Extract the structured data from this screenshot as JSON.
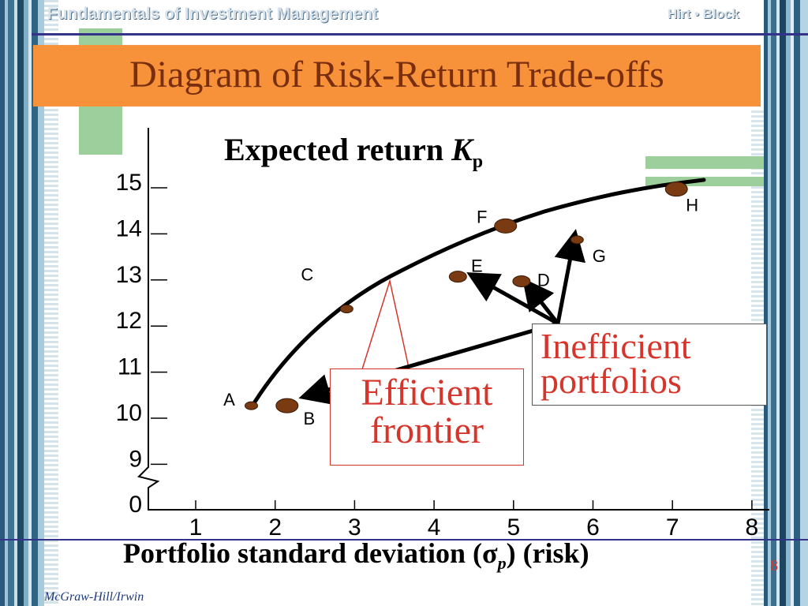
{
  "header": {
    "book_title": "Fundamentals of Investment Management",
    "authors": "Hirt • Block"
  },
  "slide": {
    "title": "Diagram of Risk-Return Trade-offs",
    "publisher": "McGraw-Hill/Irwin",
    "page_number": "8"
  },
  "axes": {
    "y_label_text": "Expected return ",
    "y_label_symbol": "K",
    "y_label_sub": "p",
    "x_label_text": "Portfolio standard deviation (",
    "x_label_symbol": "σ",
    "x_label_sub": "p",
    "x_label_tail": ")  (risk)",
    "y_ticks": [
      "15",
      "14",
      "13",
      "12",
      "11",
      "10",
      "9",
      "0"
    ],
    "x_ticks": [
      "1",
      "2",
      "3",
      "4",
      "5",
      "6",
      "7",
      "8"
    ]
  },
  "callouts": {
    "efficient_frontier": [
      "Efficient",
      "frontier"
    ],
    "inefficient_portfolios": [
      "Inefficient",
      "portfolios"
    ]
  },
  "colors": {
    "title_bar": "#f7923a",
    "title_text": "#7a2e10",
    "callout_text": "#d6352b",
    "point_fill": "#7a3a12",
    "frontier": "#000000"
  },
  "chart_data": {
    "type": "scatter",
    "y_axis_break": "0",
    "ylim": [
      9,
      15
    ],
    "xlim": [
      1,
      8
    ],
    "frontier_curve": [
      {
        "x": 1.7,
        "y": 10.1
      },
      {
        "x": 2.9,
        "y": 12.2
      },
      {
        "x": 4.9,
        "y": 14.0
      },
      {
        "x": 6.4,
        "y": 14.7
      },
      {
        "x": 7.4,
        "y": 14.8
      }
    ],
    "points": [
      {
        "label": "A",
        "x": 1.7,
        "y": 10.1,
        "size": "small"
      },
      {
        "label": "B",
        "x": 2.15,
        "y": 10.1,
        "size": "large"
      },
      {
        "label": "C",
        "x": 2.9,
        "y": 12.2,
        "size": "small"
      },
      {
        "label": "E",
        "x": 4.3,
        "y": 12.9,
        "size": "medium"
      },
      {
        "label": "D",
        "x": 5.1,
        "y": 12.8,
        "size": "medium"
      },
      {
        "label": "F",
        "x": 4.9,
        "y": 14.0,
        "size": "large"
      },
      {
        "label": "G",
        "x": 5.8,
        "y": 13.7,
        "size": "small"
      },
      {
        "label": "H",
        "x": 7.05,
        "y": 14.8,
        "size": "large"
      }
    ]
  }
}
